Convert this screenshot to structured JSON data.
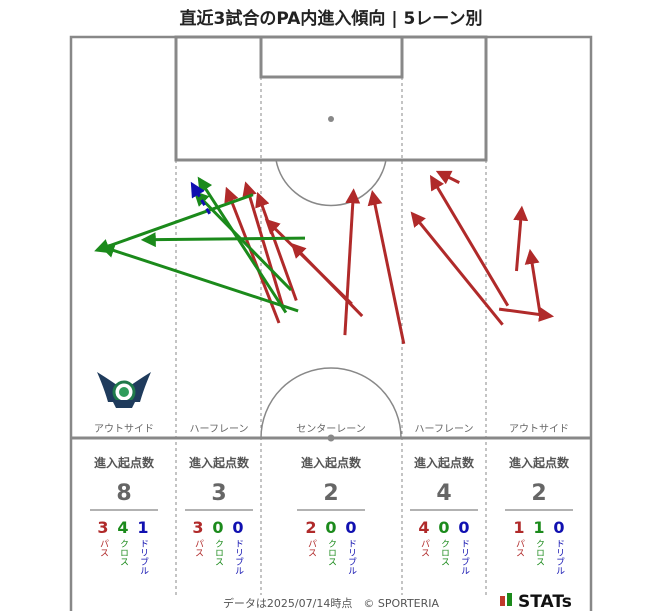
{
  "title": "直近3試合のPA内進入傾向 | 5レーン別",
  "colors": {
    "pass": "#b02a2a",
    "cross": "#1b8a1b",
    "dribble": "#1010b0",
    "pitch_line": "#888888"
  },
  "lanes": [
    {
      "name": "アウトサイド",
      "count_title": "進入起点数",
      "total": "8",
      "pass": "3",
      "cross": "4",
      "dribble": "1"
    },
    {
      "name": "ハーフレーン",
      "count_title": "進入起点数",
      "total": "3",
      "pass": "3",
      "cross": "0",
      "dribble": "0"
    },
    {
      "name": "センターレーン",
      "count_title": "進入起点数",
      "total": "2",
      "pass": "2",
      "cross": "0",
      "dribble": "0"
    },
    {
      "name": "ハーフレーン",
      "count_title": "進入起点数",
      "total": "4",
      "pass": "4",
      "cross": "0",
      "dribble": "0"
    },
    {
      "name": "アウトサイド",
      "count_title": "進入起点数",
      "total": "2",
      "pass": "1",
      "cross": "1",
      "dribble": "0"
    }
  ],
  "type_labels": {
    "pass": "パス",
    "cross": "クロス",
    "dribble": "ドリブル"
  },
  "footer": {
    "note": "データは2025/07/14時点　© SPORTERIA",
    "brand": "STATs"
  },
  "chart_data": {
    "type": "scatter",
    "title": "直近3試合のPA内進入傾向 | 5レーン別",
    "categories": [
      "アウトサイド",
      "ハーフレーン",
      "センターレーン",
      "ハーフレーン",
      "アウトサイド"
    ],
    "series": [
      {
        "name": "パス",
        "values": [
          3,
          3,
          2,
          4,
          1
        ]
      },
      {
        "name": "クロス",
        "values": [
          4,
          0,
          0,
          0,
          1
        ]
      },
      {
        "name": "ドリブル",
        "values": [
          1,
          0,
          0,
          0,
          0
        ]
      }
    ],
    "arrows": [
      {
        "type": "pass",
        "from": [
          90,
          88
        ],
        "to": [
          120,
          165
        ]
      },
      {
        "type": "pass",
        "from": [
          101,
          85
        ],
        "to": [
          122,
          155
        ]
      },
      {
        "type": "pass",
        "from": [
          113,
          106
        ],
        "to": [
          162,
          154
        ]
      },
      {
        "type": "pass",
        "from": [
          108,
          91
        ],
        "to": [
          130,
          152
        ]
      },
      {
        "type": "pass",
        "from": [
          128,
          120
        ],
        "to": [
          168,
          161
        ]
      },
      {
        "type": "pass",
        "from": [
          163,
          89
        ],
        "to": [
          158,
          172
        ]
      },
      {
        "type": "pass",
        "from": [
          174,
          90
        ],
        "to": [
          192,
          177
        ]
      },
      {
        "type": "pass",
        "from": [
          197,
          102
        ],
        "to": [
          249,
          166
        ]
      },
      {
        "type": "pass",
        "from": [
          208,
          81
        ],
        "to": [
          252,
          155
        ]
      },
      {
        "type": "pass",
        "from": [
          277,
          161
        ],
        "to": [
          247,
          157
        ]
      },
      {
        "type": "pass",
        "from": [
          265,
          124
        ],
        "to": [
          271,
          162
        ]
      },
      {
        "type": "pass",
        "from": [
          260,
          99
        ],
        "to": [
          257,
          135
        ]
      },
      {
        "type": "pass",
        "from": [
          212,
          78
        ],
        "to": [
          224,
          84
        ]
      },
      {
        "type": "cross",
        "from": [
          42,
          117
        ],
        "to": [
          135,
          116
        ]
      },
      {
        "type": "cross",
        "from": [
          15,
          123
        ],
        "to": [
          105,
          91
        ]
      },
      {
        "type": "cross",
        "from": [
          72,
          90
        ],
        "to": [
          127,
          146
        ]
      },
      {
        "type": "cross",
        "from": [
          74,
          82
        ],
        "to": [
          124,
          159
        ]
      },
      {
        "type": "cross",
        "from": [
          18,
          121
        ],
        "to": [
          131,
          158
        ]
      },
      {
        "type": "dribble",
        "from": [
          70,
          85
        ],
        "to": [
          80,
          102
        ]
      }
    ]
  }
}
